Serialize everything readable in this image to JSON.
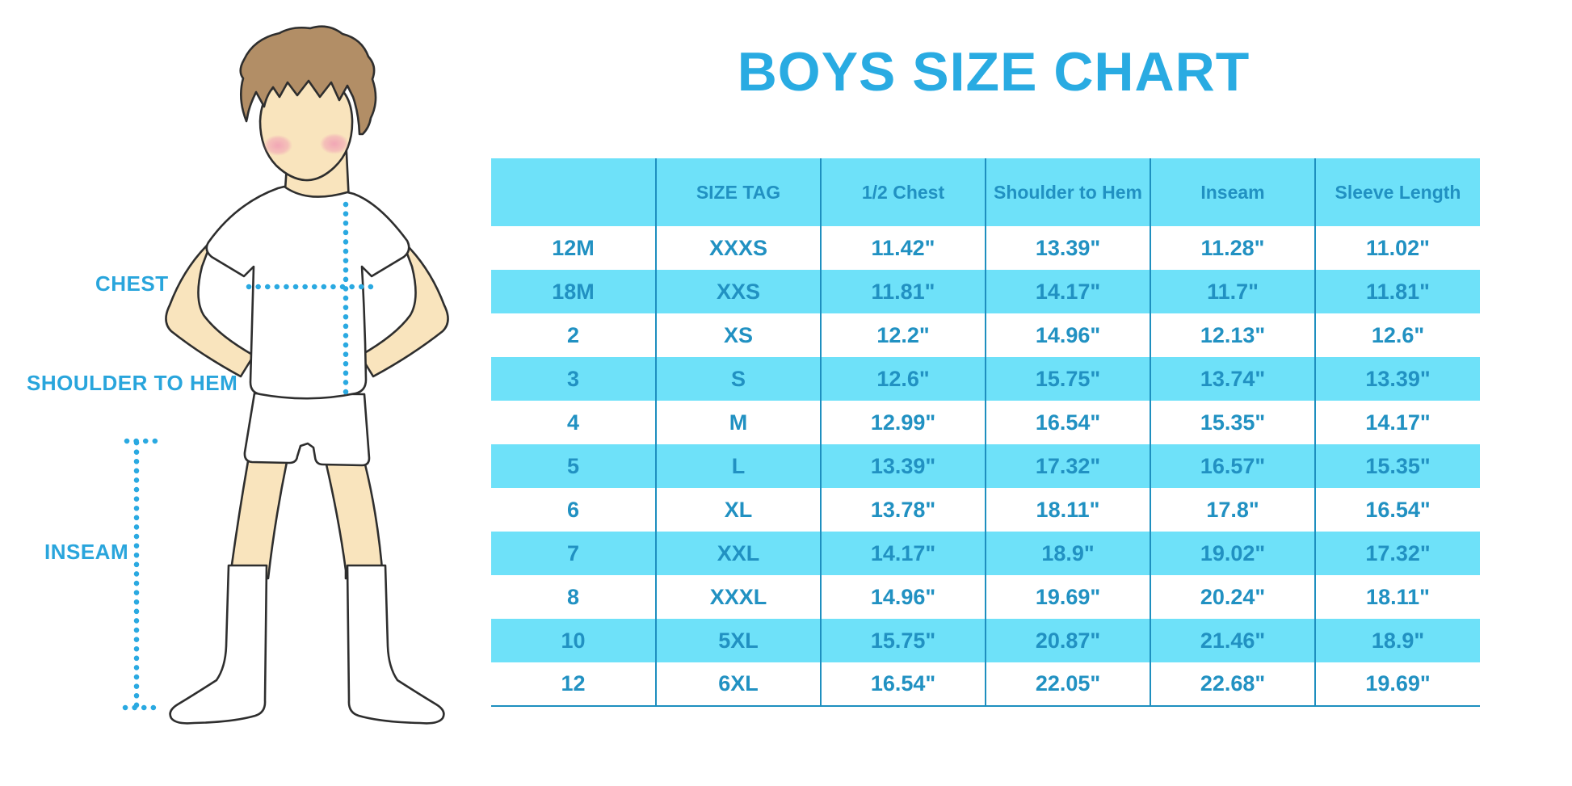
{
  "title": "BOYS SIZE CHART",
  "diagram": {
    "labels": {
      "chest": "CHEST",
      "shoulder_to_hem": "SHOULDER TO HEM",
      "inseam": "INSEAM"
    }
  },
  "chart_data": {
    "type": "table",
    "title": "BOYS SIZE CHART",
    "columns": [
      "",
      "SIZE TAG",
      "1/2 Chest",
      "Shoulder to Hem",
      "Inseam",
      "Sleeve Length"
    ],
    "rows": [
      [
        "12M",
        "XXXS",
        "11.42\"",
        "13.39\"",
        "11.28\"",
        "11.02\""
      ],
      [
        "18M",
        "XXS",
        "11.81\"",
        "14.17\"",
        "11.7\"",
        "11.81\""
      ],
      [
        "2",
        "XS",
        "12.2\"",
        "14.96\"",
        "12.13\"",
        "12.6\""
      ],
      [
        "3",
        "S",
        "12.6\"",
        "15.75\"",
        "13.74\"",
        "13.39\""
      ],
      [
        "4",
        "M",
        "12.99\"",
        "16.54\"",
        "15.35\"",
        "14.17\""
      ],
      [
        "5",
        "L",
        "13.39\"",
        "17.32\"",
        "16.57\"",
        "15.35\""
      ],
      [
        "6",
        "XL",
        "13.78\"",
        "18.11\"",
        "17.8\"",
        "16.54\""
      ],
      [
        "7",
        "XXL",
        "14.17\"",
        "18.9\"",
        "19.02\"",
        "17.32\""
      ],
      [
        "8",
        "XXXL",
        "14.96\"",
        "19.69\"",
        "20.24\"",
        "18.11\""
      ],
      [
        "10",
        "5XL",
        "15.75\"",
        "20.87\"",
        "21.46\"",
        "18.9\""
      ],
      [
        "12",
        "6XL",
        "16.54\"",
        "22.05\"",
        "22.68\"",
        "19.69\""
      ]
    ],
    "layout": {
      "striped_rows": true,
      "stripe_color": "#6EE1F9",
      "text_color": "#2191C2",
      "grid_color": "#1E8FBF"
    }
  },
  "colors": {
    "title_blue": "#29ABE2",
    "label_blue": "#29A5DC",
    "row_cyan": "#6EE1F9",
    "cell_text_blue": "#2191C2",
    "table_line_blue": "#1E8FBF",
    "dotted_line_blue": "#2AA9E1",
    "skin": "#F9E4BD",
    "hair_brown": "#B28E66",
    "blush_pink": "#F1A3B5"
  }
}
